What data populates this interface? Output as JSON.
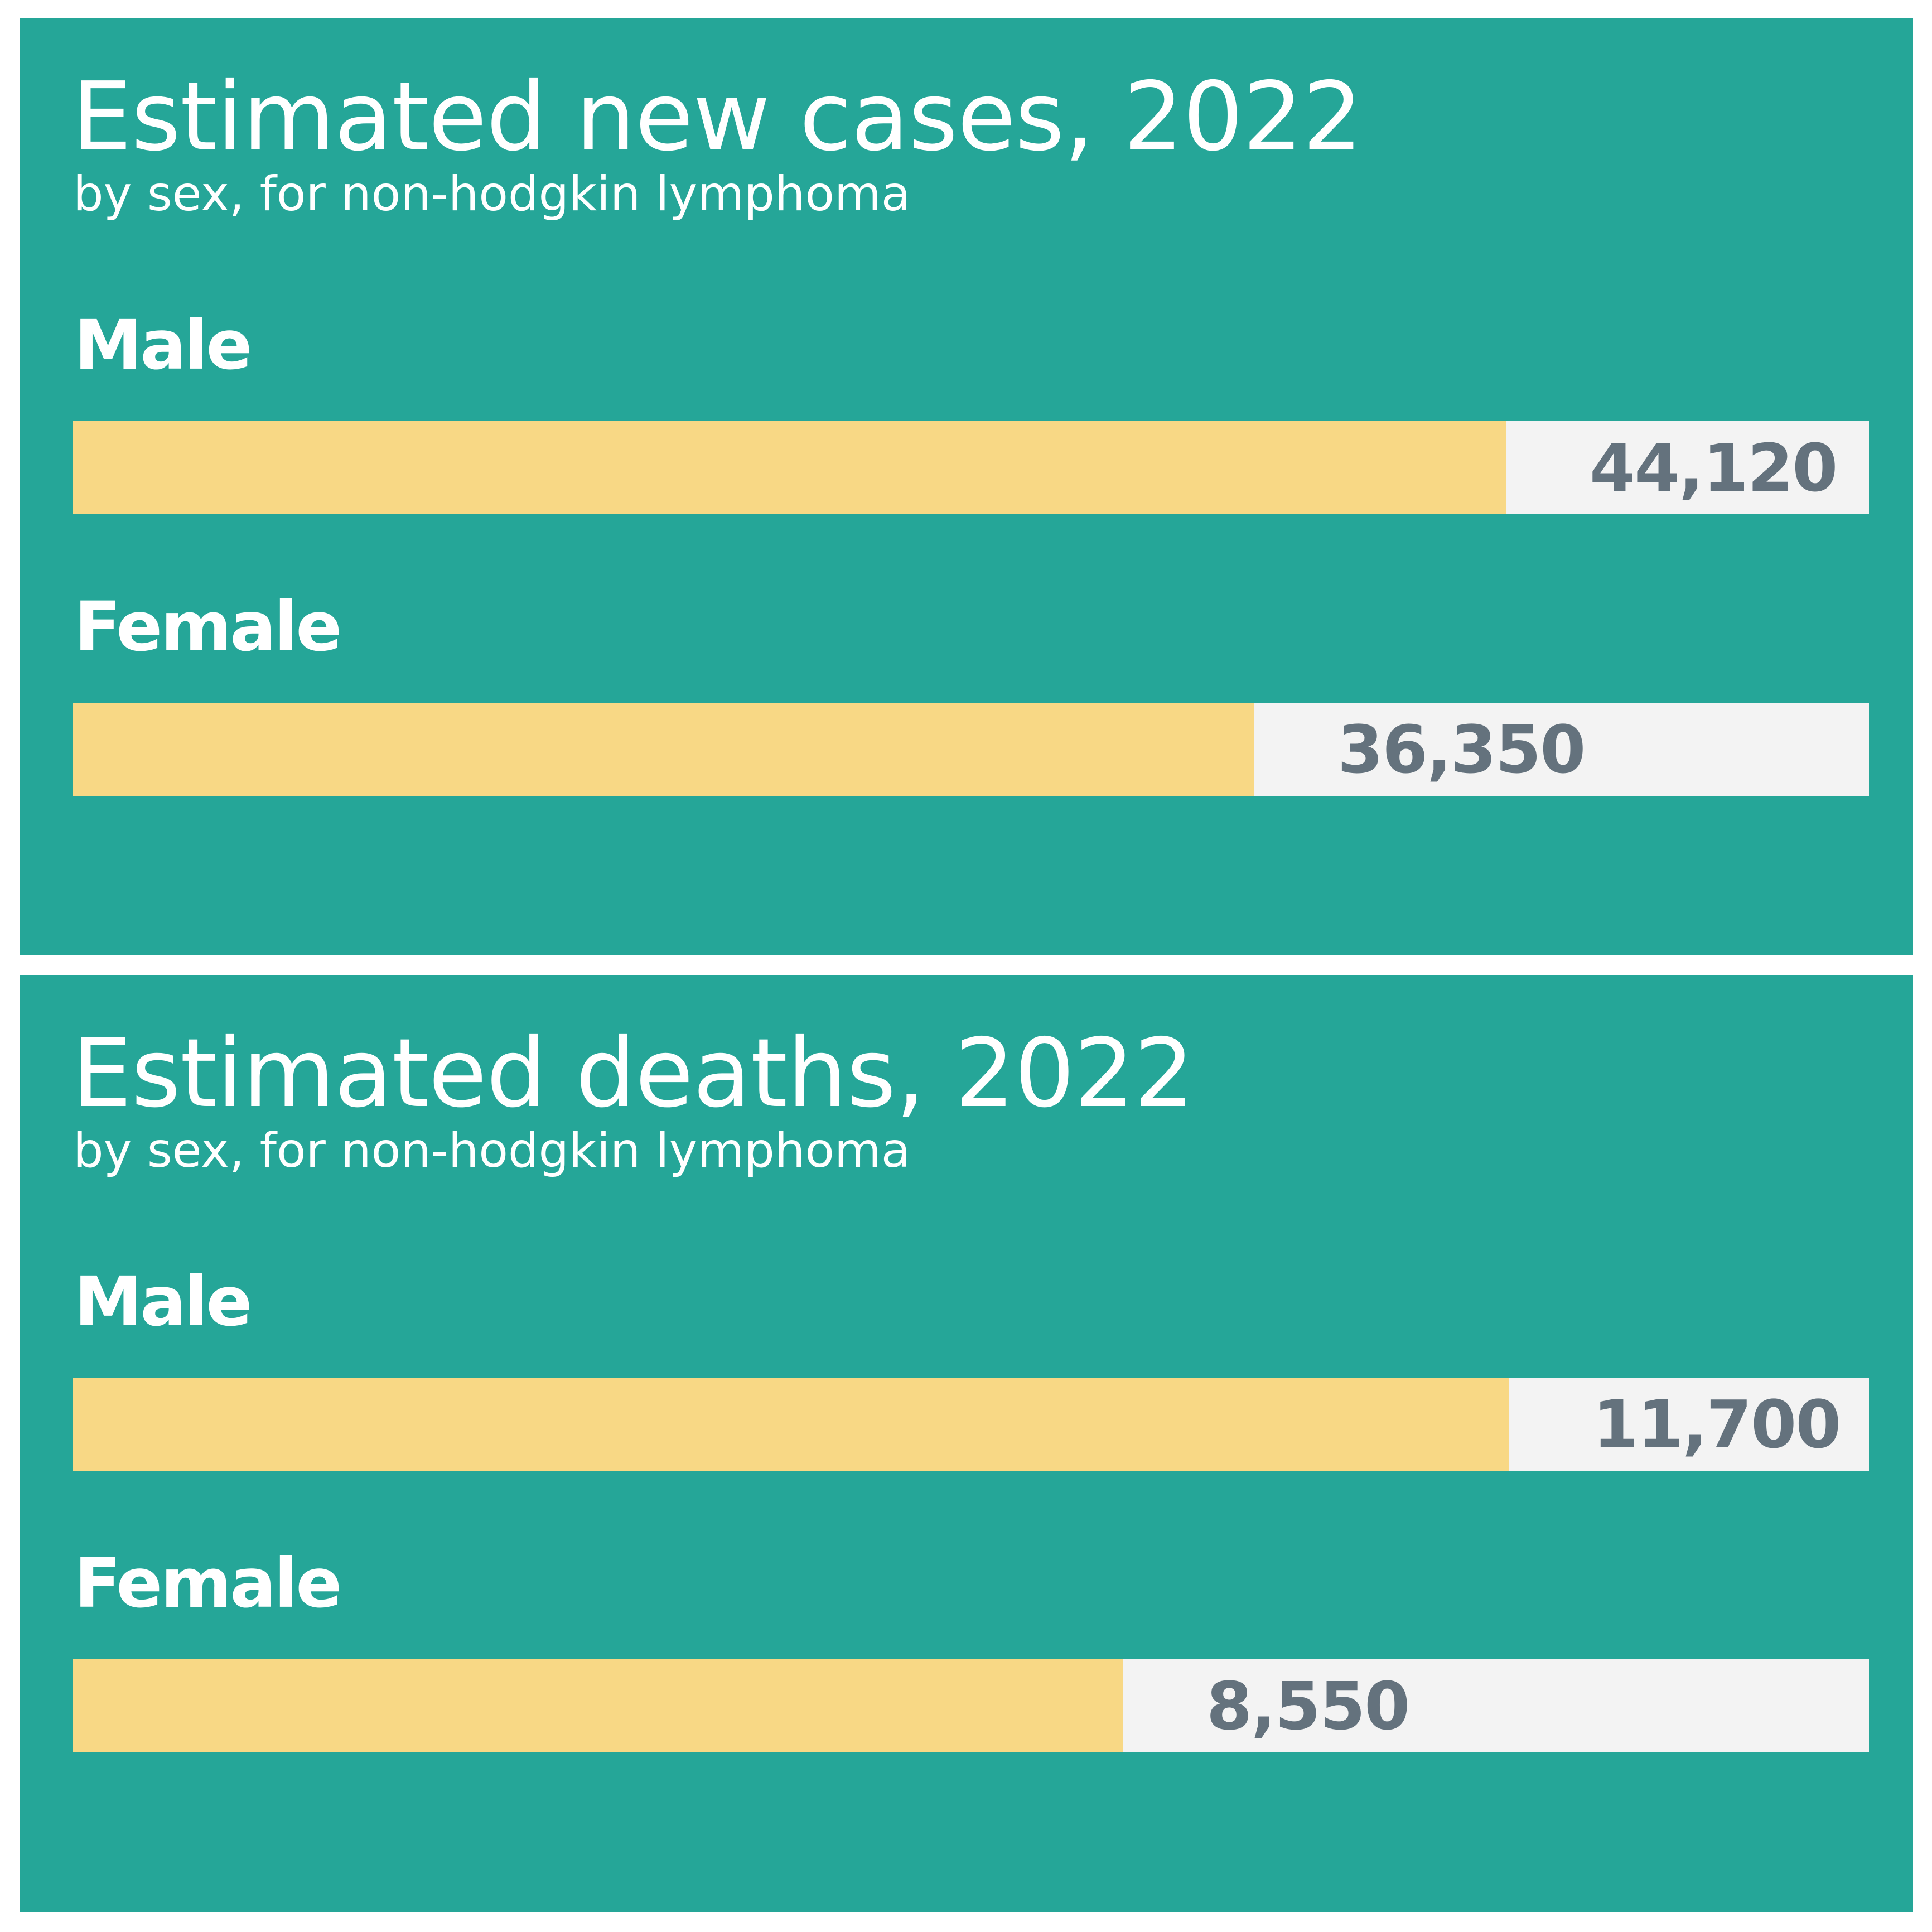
{
  "colors": {
    "panel_background": "#25a698",
    "bar_fill": "#f8d885",
    "bar_track": "#f3f3f3",
    "value_text": "#64727d",
    "title_text": "#ffffff"
  },
  "chart_data": [
    {
      "type": "bar",
      "orientation": "horizontal",
      "title": "Estimated new cases, 2022",
      "subtitle": "by sex, for non-hodgkin lymphoma",
      "categories": [
        "Male",
        "Female"
      ],
      "values": [
        44120,
        36350
      ],
      "value_labels": [
        "44,120",
        "36,350"
      ],
      "xlim": [
        0,
        55300
      ],
      "grid": false,
      "legend": "none"
    },
    {
      "type": "bar",
      "orientation": "horizontal",
      "title": "Estimated deaths, 2022",
      "subtitle": "by sex, for non-hodgkin lymphoma",
      "categories": [
        "Male",
        "Female"
      ],
      "values": [
        11700,
        8550
      ],
      "value_labels": [
        "11,700",
        "8,550"
      ],
      "xlim": [
        0,
        14630
      ],
      "grid": false,
      "legend": "none"
    }
  ]
}
